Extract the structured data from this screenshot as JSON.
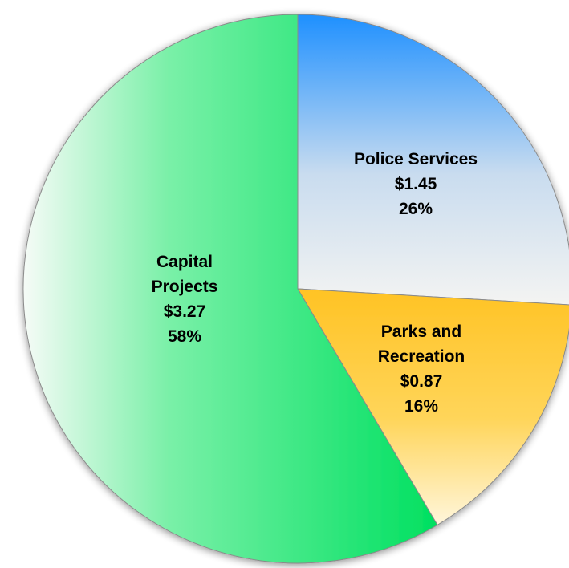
{
  "chart_data": {
    "type": "pie",
    "title": "",
    "slices": [
      {
        "name": "Police Services",
        "label_lines": [
          "Police Services"
        ],
        "value": 1.45,
        "value_label": "$1.45",
        "percent_label": "26%",
        "color": "#1e90ff"
      },
      {
        "name": "Parks and Recreation",
        "label_lines": [
          "Parks and",
          "Recreation"
        ],
        "value": 0.87,
        "value_label": "$0.87",
        "percent_label": "16%",
        "color": "#ffc91e"
      },
      {
        "name": "Capital Projects",
        "label_lines": [
          "Capital",
          "Projects"
        ],
        "value": 3.27,
        "value_label": "$3.27",
        "percent_label": "58%",
        "color": "#00e060"
      }
    ],
    "start_angle_deg": 0,
    "direction": "clockwise",
    "legend": "none"
  }
}
